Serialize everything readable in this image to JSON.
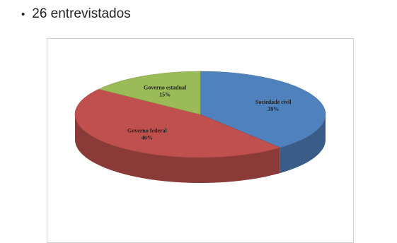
{
  "header": {
    "bullet": "•",
    "text": "26 entrevistados"
  },
  "chart_data": {
    "type": "pie",
    "style": "3d",
    "title": "",
    "slices": [
      {
        "label": "Sociedade civil",
        "value_label": "39%",
        "value": 39,
        "color": "#4f81bd"
      },
      {
        "label": "Governo federal",
        "value_label": "46%",
        "value": 46,
        "color": "#c0504d"
      },
      {
        "label": "Governo estadual",
        "value_label": "15%",
        "value": 15,
        "color": "#9bbb59"
      }
    ],
    "legend": "none"
  }
}
